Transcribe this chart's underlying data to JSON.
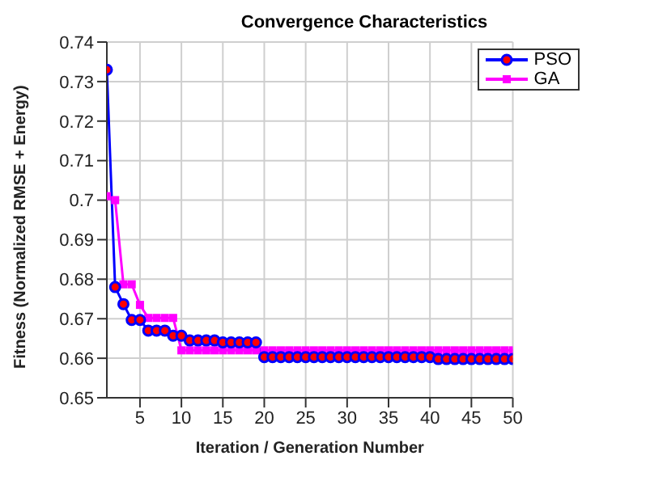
{
  "chart_data": {
    "type": "line",
    "title": "Convergence Characteristics",
    "xlabel": "Iteration / Generation Number",
    "ylabel": "Fitness (Normalized RMSE + Energy)",
    "x": [
      1,
      2,
      3,
      4,
      5,
      6,
      7,
      8,
      9,
      10,
      11,
      12,
      13,
      14,
      15,
      16,
      17,
      18,
      19,
      20,
      21,
      22,
      23,
      24,
      25,
      26,
      27,
      28,
      29,
      30,
      31,
      32,
      33,
      34,
      35,
      36,
      37,
      38,
      39,
      40,
      41,
      42,
      43,
      44,
      45,
      46,
      47,
      48,
      49,
      50
    ],
    "series": [
      {
        "name": "PSO",
        "color": "#0000ff",
        "marker": "circle",
        "values": [
          0.733,
          0.678,
          0.6737,
          0.6697,
          0.6697,
          0.667,
          0.667,
          0.667,
          0.6657,
          0.6657,
          0.6645,
          0.6645,
          0.6645,
          0.6645,
          0.664,
          0.664,
          0.664,
          0.664,
          0.664,
          0.6603,
          0.6603,
          0.6603,
          0.6603,
          0.6603,
          0.6603,
          0.6603,
          0.6603,
          0.6603,
          0.6603,
          0.6603,
          0.6603,
          0.6603,
          0.6603,
          0.6603,
          0.6603,
          0.6603,
          0.6603,
          0.6603,
          0.6603,
          0.6603,
          0.6598,
          0.6598,
          0.6598,
          0.6598,
          0.6598,
          0.6598,
          0.6598,
          0.6598,
          0.6598,
          0.6598
        ]
      },
      {
        "name": "GA",
        "color": "#ff00ff",
        "marker": "square",
        "values": [
          0.701,
          0.7,
          0.6787,
          0.6787,
          0.6735,
          0.6702,
          0.6702,
          0.6702,
          0.6702,
          0.662,
          0.662,
          0.662,
          0.662,
          0.662,
          0.662,
          0.662,
          0.662,
          0.662,
          0.662,
          0.662,
          0.662,
          0.662,
          0.662,
          0.662,
          0.662,
          0.662,
          0.662,
          0.662,
          0.662,
          0.662,
          0.662,
          0.662,
          0.662,
          0.662,
          0.662,
          0.662,
          0.662,
          0.662,
          0.662,
          0.662,
          0.662,
          0.662,
          0.662,
          0.662,
          0.662,
          0.662,
          0.662,
          0.662,
          0.662,
          0.662
        ]
      }
    ],
    "xlim": [
      1,
      50
    ],
    "xticks": [
      5,
      10,
      15,
      20,
      25,
      30,
      35,
      40,
      45,
      50
    ],
    "ylim": [
      0.65,
      0.74
    ],
    "yticks": [
      0.65,
      0.66,
      0.67,
      0.68,
      0.69,
      0.7,
      0.71,
      0.72,
      0.73,
      0.74
    ],
    "grid": true,
    "legend": "top right",
    "line_style": "solid"
  }
}
